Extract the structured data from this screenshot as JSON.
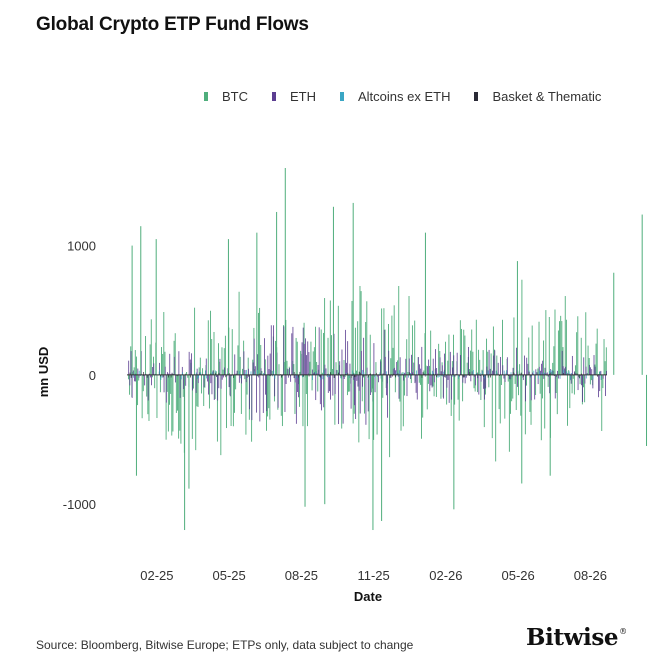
{
  "chart_data": {
    "type": "bar",
    "title": "Global Crypto ETP Fund Flows",
    "xlabel": "Date",
    "ylabel": "mn USD",
    "ylim": [
      -1370,
      1600
    ],
    "yticks": [
      -1000,
      0,
      1000
    ],
    "xticks": [
      "02-25",
      "05-25",
      "08-25",
      "11-25",
      "02-26",
      "05-26",
      "08-26"
    ],
    "x_range_months": [
      "12-24",
      "10-26"
    ],
    "legend_position": "top",
    "grid": false,
    "series": [
      {
        "name": "BTC",
        "color": "#4fae7c"
      },
      {
        "name": "ETH",
        "color": "#5b3d91"
      },
      {
        "name": "Altcoins ex ETH",
        "color": "#3aa6c4"
      },
      {
        "name": "Basket & Thematic",
        "color": "#2a2a36"
      }
    ],
    "btc_highlights": [
      {
        "date": "01-25",
        "value": 1000
      },
      {
        "date": "01-25",
        "value": -780
      },
      {
        "date": "01-25",
        "value": 1150
      },
      {
        "date": "02-25",
        "value": 1050
      },
      {
        "date": "03-25",
        "value": -1200
      },
      {
        "date": "03-25",
        "value": -880
      },
      {
        "date": "05-25",
        "value": 1050
      },
      {
        "date": "06-25",
        "value": 1100
      },
      {
        "date": "07-25",
        "value": 1600
      },
      {
        "date": "07-25",
        "value": 1260
      },
      {
        "date": "08-25",
        "value": -1020
      },
      {
        "date": "09-25",
        "value": 1300
      },
      {
        "date": "09-25",
        "value": -1000
      },
      {
        "date": "10-25",
        "value": 1330
      },
      {
        "date": "11-25",
        "value": -1130
      },
      {
        "date": "11-25",
        "value": -1200
      },
      {
        "date": "01-26",
        "value": 1100
      },
      {
        "date": "02-26",
        "value": -1040
      },
      {
        "date": "05-26",
        "value": 880
      },
      {
        "date": "05-26",
        "value": -840
      },
      {
        "date": "06-26",
        "value": -780
      },
      {
        "date": "09-26",
        "value": 790
      },
      {
        "date": "10-26",
        "value": 1240
      },
      {
        "date": "10-26",
        "value": -550
      }
    ]
  },
  "source": "Source: Bloomberg, Bitwise Europe; ETPs only, data subject to change",
  "logo": {
    "text": "Bitwise",
    "mark": "®"
  }
}
